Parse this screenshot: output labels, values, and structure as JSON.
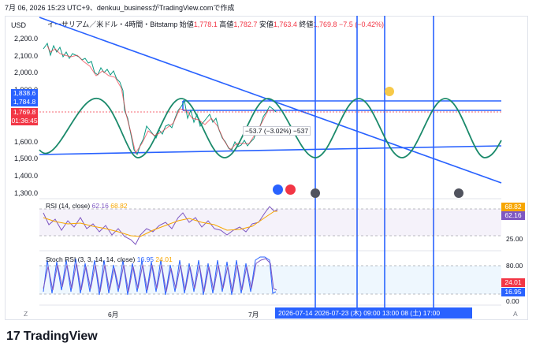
{
  "header": {
    "text": "7月 06, 2026 15:23 UTC+9、denkuu_businessがTradingView.comで作成"
  },
  "chart": {
    "currency": "USD",
    "symbol": "イーサリアム／米ドル・4時間・Bitstamp",
    "open_label": "始値",
    "open_value": "1,778.1",
    "high_label": "高値",
    "high_value": "1,782.7",
    "low_label": "安値",
    "low_value": "1,763.4",
    "close_label": "終値",
    "close_value": "1,769.8",
    "change": "−7.5 (−0.42%)",
    "price_axis": [
      "2,200.0",
      "2,100.0",
      "2,000.0",
      "1,900.0",
      "1,600.0",
      "1,500.0",
      "1,400.0",
      "1,300.0"
    ],
    "price_boxes": {
      "line1": "1,838.6",
      "line2": "1,784.8",
      "current": "1,769.8",
      "countdown": "01:36:45"
    },
    "measure_text": "−53.7 (−3.02%) −537",
    "colors": {
      "blue": "#2962ff",
      "up": "#089981",
      "down": "#f23645",
      "teal_wave": "#1b8a6b",
      "rsi": "#7e57c2",
      "rsi_ma": "#f7a600"
    }
  },
  "rsi": {
    "label": "RSI (14, close)",
    "value1": "62.16",
    "value2": "68.82",
    "axis_tick": "25.00",
    "badge_top": "68.82",
    "badge_bottom": "62.16"
  },
  "stoch": {
    "label": "Stoch RSI (3, 3, 14, 14, close)",
    "value1": "16.95",
    "value2": "24.01",
    "axis_top": "80.00",
    "axis_bottom": "0.00",
    "badge_top": "24.01",
    "badge_bottom": "16.95"
  },
  "xaxis": {
    "june": "6月",
    "july": "7月",
    "timebar": "2026-07-14   2026-07-23 (木)   09:00   13:00   08 (土)   17:00",
    "z_left": "Z",
    "a_right": "A"
  },
  "footer": {
    "logo_mark": "17",
    "logo_text": "TradingView"
  }
}
